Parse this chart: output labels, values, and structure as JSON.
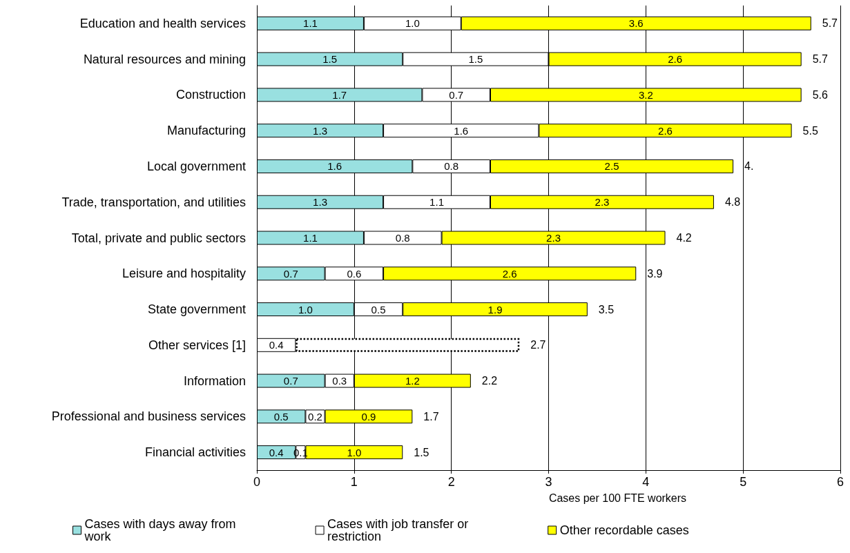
{
  "chart_data": {
    "type": "bar",
    "orientation": "horizontal",
    "stacked": true,
    "xlabel": "Cases per 100 FTE workers",
    "categories": [
      "Education and health services",
      "Natural resources and mining",
      "Construction",
      "Manufacturing",
      "Local government",
      "Trade, transportation, and utilities",
      "Total, private and public sectors",
      "Leisure and hospitality",
      "State government",
      "Other services [1]",
      "Information",
      "Professional and business services",
      "Financial activities"
    ],
    "series": [
      {
        "name": "Cases with days away from work",
        "color": "#99e0e0",
        "values": [
          1.1,
          1.5,
          1.7,
          1.3,
          1.6,
          1.3,
          1.1,
          0.7,
          1.0,
          null,
          0.7,
          0.5,
          0.4
        ],
        "value_labels": [
          "1.1",
          "1.5",
          "1.7",
          "1.3",
          "1.6",
          "1.3",
          "1.1",
          "0.7",
          "1.0",
          null,
          "0.7",
          "0.5",
          "0.4"
        ]
      },
      {
        "name": "Cases with job transfer or restriction",
        "color": "#ffffff",
        "values": [
          1.0,
          1.5,
          0.7,
          1.6,
          0.8,
          1.1,
          0.8,
          0.6,
          0.5,
          0.4,
          0.3,
          0.2,
          0.1
        ],
        "value_labels": [
          "1.0",
          "1.5",
          "0.7",
          "1.6",
          "0.8",
          "1.1",
          "0.8",
          "0.6",
          "0.5",
          "0.4",
          "0.3",
          "0.2",
          "0.1"
        ]
      },
      {
        "name": "Other recordable cases",
        "color": "#ffff00",
        "colors": [
          "#ffff00",
          "#ffff00",
          "#ffff00",
          "#ffff00",
          "#ffff00",
          "#ffff00",
          "#ffff00",
          "#ffff00",
          "#ffff00",
          "#ffffff",
          "#ffff00",
          "#ffff00",
          "#ffff00"
        ],
        "line_style": [
          "solid",
          "solid",
          "solid",
          "solid",
          "solid",
          "solid",
          "solid",
          "solid",
          "solid",
          "dotted",
          "solid",
          "solid",
          "solid"
        ],
        "values": [
          3.6,
          2.6,
          3.2,
          2.6,
          2.5,
          2.3,
          2.3,
          2.6,
          1.9,
          2.3,
          1.2,
          0.9,
          1.0
        ],
        "value_labels": [
          "3.6",
          "2.6",
          "3.2",
          "2.6",
          "2.5",
          "2.3",
          "2.3",
          "2.6",
          "1.9",
          null,
          "1.2",
          "0.9",
          "1.0"
        ]
      }
    ],
    "data_labels": true,
    "totals": [
      "5.7",
      "5.7",
      "5.6",
      "5.5",
      "4.",
      "4.8",
      "4.2",
      "3.9",
      "3.5",
      "2.7",
      "2.2",
      "1.7",
      "1.5"
    ],
    "xlim": [
      0,
      6
    ],
    "xticks": [
      0,
      1,
      2,
      3,
      4,
      5,
      6
    ],
    "grid": "x",
    "legend": "bottom"
  }
}
